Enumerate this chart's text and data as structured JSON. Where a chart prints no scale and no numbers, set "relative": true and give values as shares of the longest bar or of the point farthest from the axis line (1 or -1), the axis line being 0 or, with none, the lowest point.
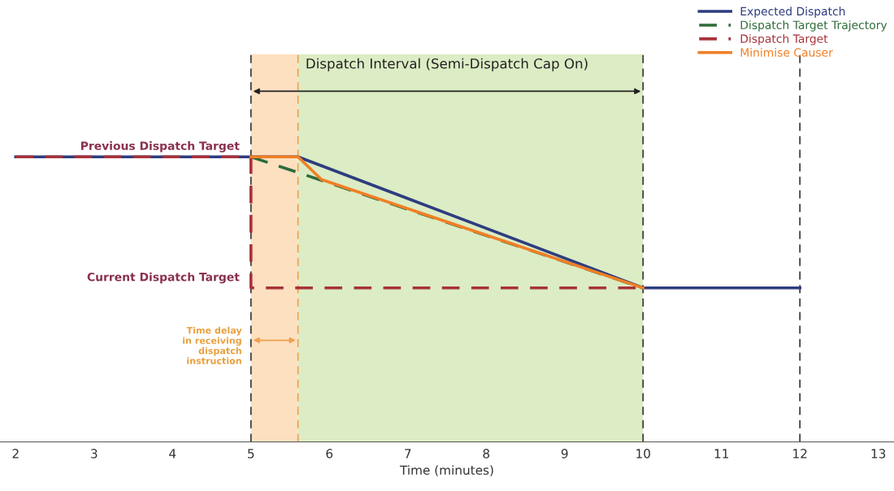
{
  "chart_data": {
    "type": "line",
    "relative": true,
    "xlabel": "Time (minutes)",
    "xlim": [
      1.8,
      13.2
    ],
    "xticks": [
      2,
      3,
      4,
      5,
      6,
      7,
      8,
      9,
      10,
      11,
      12,
      13
    ],
    "series": [
      {
        "name": "Expected Dispatch",
        "color": "#2e3d7f",
        "line_style": "solid",
        "x": [
          2,
          5.6,
          10,
          12
        ],
        "values": [
          1,
          1,
          0.54,
          0.54
        ]
      },
      {
        "name": "Dispatch Target Trajectory",
        "color": "#2f6b3a",
        "line_style": "dashed",
        "x": [
          5,
          10
        ],
        "values": [
          1,
          0.54
        ]
      },
      {
        "name": "Dispatch Target",
        "color": "#a8323a",
        "line_style": "dashed",
        "x": [
          2,
          5,
          5,
          10
        ],
        "values": [
          1,
          1,
          0.54,
          0.54
        ]
      },
      {
        "name": "Minimise Causer",
        "color": "#f07f26",
        "line_style": "solid",
        "x": [
          5,
          5.6,
          5.9,
          10
        ],
        "values": [
          1,
          1,
          0.92,
          0.54
        ]
      }
    ],
    "bands": [
      {
        "axis": "x",
        "from": 5,
        "to": 5.6,
        "color": "#fde0c0"
      },
      {
        "axis": "x",
        "from": 5.6,
        "to": 10,
        "color": "#dcecc4"
      }
    ],
    "ref_lines": [
      {
        "axis": "x",
        "value": 5,
        "color": "#333333",
        "line_style": "dashed"
      },
      {
        "axis": "x",
        "value": 5.6,
        "color": "#f0a050",
        "line_style": "dashed"
      },
      {
        "axis": "x",
        "value": 10,
        "color": "#333333",
        "line_style": "dashed"
      },
      {
        "axis": "x",
        "value": 12,
        "color": "#333333",
        "line_style": "dashed"
      }
    ],
    "annotations": [
      "Dispatch Interval (Semi-Dispatch Cap On)",
      "Previous Dispatch Target",
      "Current Dispatch Target",
      "Time delay\nin receiving\ndispatch\ninstruction"
    ],
    "legend": "top right",
    "grid": false
  }
}
